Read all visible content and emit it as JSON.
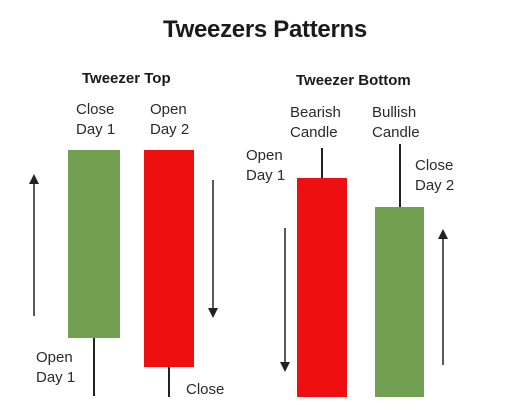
{
  "title": "Tweezers Patterns",
  "colors": {
    "bullish": "#70A050",
    "bearish": "#EE1010",
    "text": "#1a1a1a"
  },
  "tweezer_top": {
    "heading": "Tweezer Top",
    "close_day1": [
      "Close",
      "Day 1"
    ],
    "open_day2": [
      "Open",
      "Day 2"
    ],
    "open_day1": [
      "Open",
      "Day 1"
    ],
    "close": "Close"
  },
  "tweezer_bottom": {
    "heading": "Tweezer Bottom",
    "bearish_candle": [
      "Bearish",
      "Candle"
    ],
    "bullish_candle": [
      "Bullish",
      "Candle"
    ],
    "open_day1": [
      "Open",
      "Day 1"
    ],
    "close_day2": [
      "Close",
      "Day 2"
    ]
  }
}
